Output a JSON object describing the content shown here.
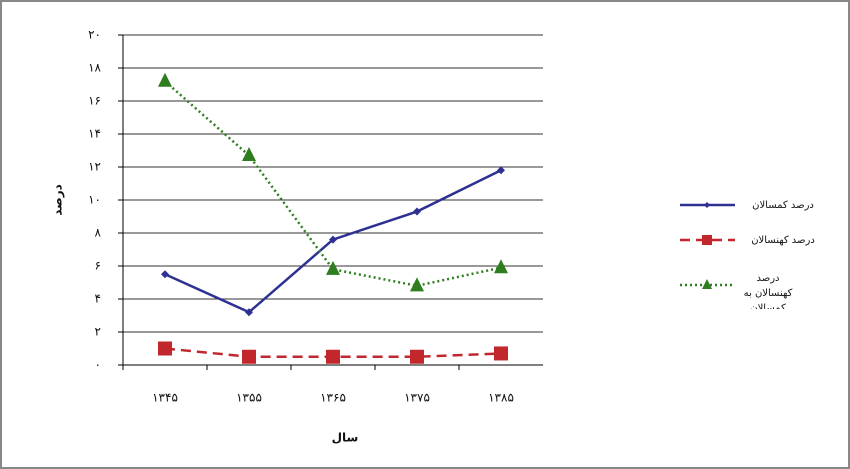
{
  "chart_data": {
    "type": "line",
    "x_label": "سال",
    "y_label": "درصد",
    "categories": [
      "۱۳۴۵",
      "۱۳۵۵",
      "۱۳۶۵",
      "۱۳۷۵",
      "۱۳۸۵"
    ],
    "series": [
      {
        "name": "درصد کمسالان",
        "color": "#2e3192",
        "marker": "diamond",
        "line_style": "solid",
        "values": [
          5.5,
          3.2,
          7.6,
          9.3,
          11.8
        ]
      },
      {
        "name": "درصد کهنسالان",
        "color": "#c1272d",
        "marker": "square",
        "line_style": "dashed",
        "values": [
          1.0,
          0.5,
          0.5,
          0.5,
          0.7
        ]
      },
      {
        "name": "درصد کهنسالان به کمسالان",
        "color": "#2e7d1f",
        "marker": "triangle",
        "line_style": "dotted",
        "values": [
          17.2,
          12.7,
          5.8,
          4.8,
          5.9
        ]
      }
    ],
    "ylim": [
      0,
      20
    ],
    "yticks": [
      {
        "value": 0,
        "label": "۰"
      },
      {
        "value": 2,
        "label": "۲"
      },
      {
        "value": 4,
        "label": "۴"
      },
      {
        "value": 6,
        "label": "۶"
      },
      {
        "value": 8,
        "label": "۸"
      },
      {
        "value": 10,
        "label": "۱۰"
      },
      {
        "value": 12,
        "label": "۱۲"
      },
      {
        "value": 14,
        "label": "۱۴"
      },
      {
        "value": 16,
        "label": "۱۶"
      },
      {
        "value": 18,
        "label": "۱۸"
      },
      {
        "value": 20,
        "label": "۲۰"
      }
    ],
    "grid": true,
    "legend": "right"
  }
}
